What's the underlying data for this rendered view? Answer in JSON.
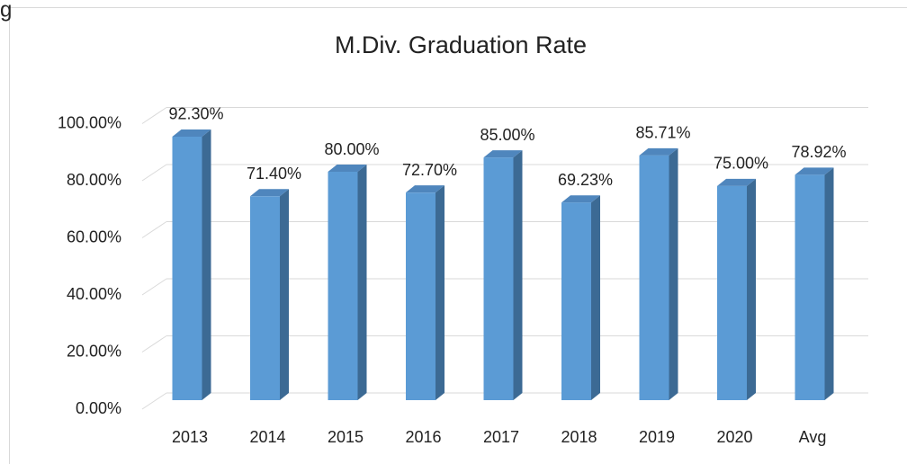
{
  "caption": "g",
  "chart_data": {
    "type": "bar3d",
    "title": "M.Div. Graduation Rate",
    "categories": [
      "2013",
      "2014",
      "2015",
      "2016",
      "2017",
      "2018",
      "2019",
      "2020",
      "Avg"
    ],
    "values": [
      92.3,
      71.4,
      80.0,
      72.7,
      85.0,
      69.23,
      85.71,
      75.0,
      78.92
    ],
    "value_labels": [
      "92.30%",
      "71.40%",
      "80.00%",
      "72.70%",
      "85.00%",
      "69.23%",
      "85.71%",
      "75.00%",
      "78.92%"
    ],
    "color": "#5b9bd5",
    "ylim": [
      0,
      100
    ],
    "yticks": [
      {
        "value": 0,
        "label": "0.00%"
      },
      {
        "value": 20,
        "label": "20.00%"
      },
      {
        "value": 40,
        "label": "40.00%"
      },
      {
        "value": 60,
        "label": "60.00%"
      },
      {
        "value": 80,
        "label": "80.00%"
      },
      {
        "value": 100,
        "label": "100.00%"
      }
    ],
    "grid": true
  }
}
